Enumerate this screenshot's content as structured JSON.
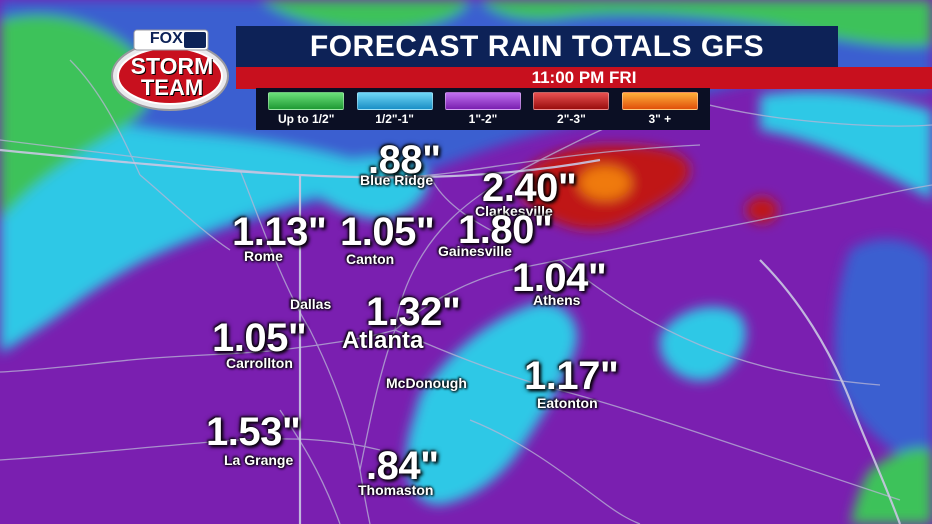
{
  "header": {
    "title": "FORECAST RAIN TOTALS GFS",
    "time": "11:00 PM FRI"
  },
  "logo": {
    "brand": "FOX 5",
    "line1": "STORM",
    "line2": "TEAM"
  },
  "legend": [
    {
      "label": "Up to 1/2\"",
      "color": "#2ecc40"
    },
    {
      "label": "1/2\"-1\"",
      "color": "#29b6e8"
    },
    {
      "label": "1\"-2\"",
      "color": "#9b30d9"
    },
    {
      "label": "2\"-3\"",
      "color": "#c41a1a"
    },
    {
      "label": "3\" +",
      "color": "#f07a10"
    }
  ],
  "colors": {
    "green": "#3cc25a",
    "cyan": "#2fc8e6",
    "blue": "#3a5fd0",
    "purple": "#7a1fb0",
    "red": "#c01818",
    "orange": "#f07a10"
  },
  "values": {
    "blue_ridge": ".88\"",
    "clarkesville": "2.40\"",
    "rome": "1.13\"",
    "canton": "1.05\"",
    "gainesville": "1.80\"",
    "athens": "1.04\"",
    "atlanta": "1.32\"",
    "carrollton": "1.05\"",
    "eatonton": "1.17\"",
    "la_grange": "1.53\"",
    "thomaston": ".84\""
  },
  "cities": {
    "blue_ridge": "Blue Ridge",
    "clarkesville": "Clarkesville",
    "rome": "Rome",
    "canton": "Canton",
    "gainesville": "Gainesville",
    "athens": "Athens",
    "dallas": "Dallas",
    "atlanta": "Atlanta",
    "carrollton": "Carrollton",
    "mcdonough": "McDonough",
    "eatonton": "Eatonton",
    "la_grange": "La Grange",
    "thomaston": "Thomaston"
  }
}
